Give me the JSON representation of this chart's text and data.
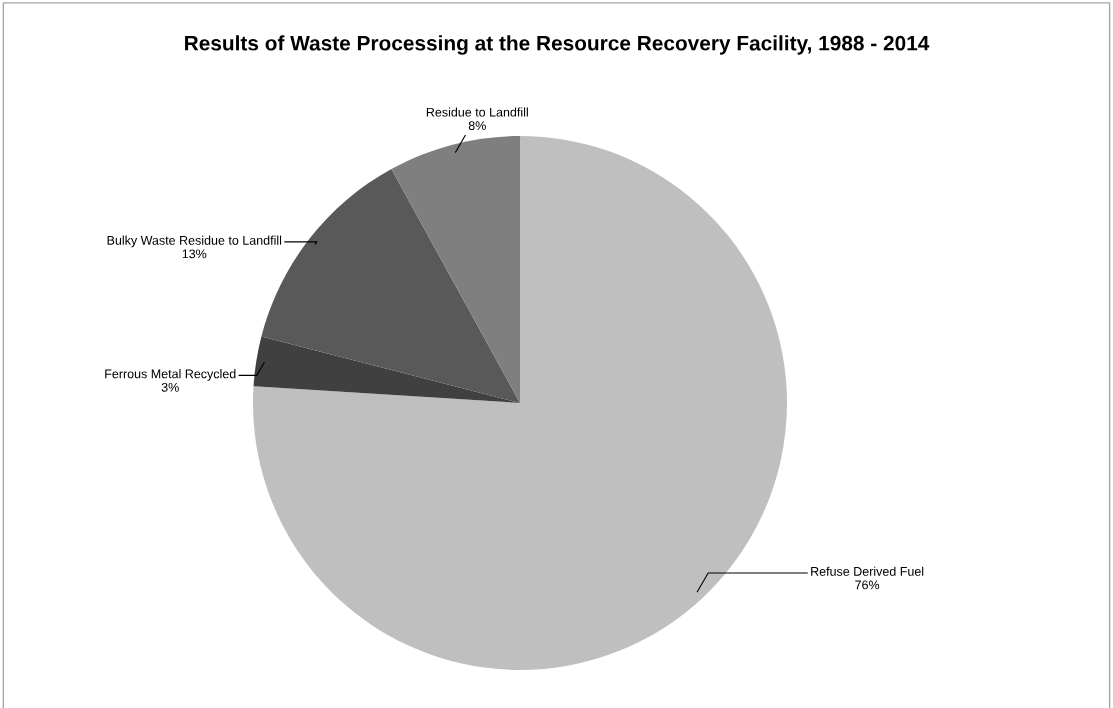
{
  "chart_data": {
    "type": "pie",
    "title": "Results of Waste Processing at the Resource Recovery Facility, 1988 - 2014",
    "categories": [
      "Refuse Derived Fuel",
      "Ferrous Metal Recycled",
      "Bulky Waste Residue to Landfill",
      "Residue to Landfill"
    ],
    "values": [
      76,
      3,
      13,
      8
    ],
    "value_labels": [
      "76%",
      "3%",
      "13%",
      "8%"
    ],
    "colors": [
      "#bfbfbf",
      "#404040",
      "#595959",
      "#7f7f7f"
    ],
    "legend": false
  }
}
